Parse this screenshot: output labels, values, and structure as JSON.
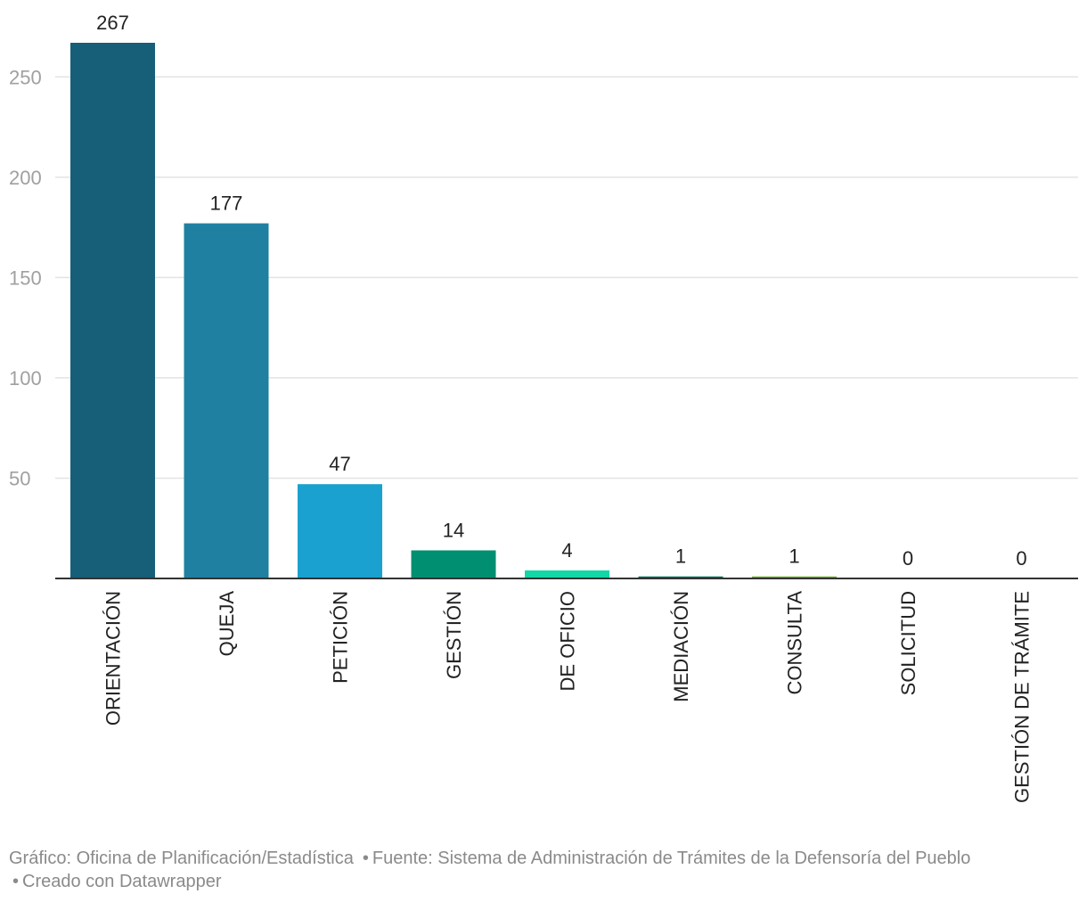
{
  "chart_data": {
    "type": "bar",
    "categories": [
      "ORIENTACIÓN",
      "QUEJA",
      "PETICIÓN",
      "GESTIÓN",
      "DE OFICIO",
      "MEDIACIÓN",
      "CONSULTA",
      "SOLICITUD",
      "GESTIÓN DE TRÁMITE"
    ],
    "values": [
      267,
      177,
      47,
      14,
      4,
      1,
      1,
      0,
      0
    ],
    "colors": [
      "#175f78",
      "#1f80a2",
      "#1aa1cf",
      "#018f72",
      "#12d7a7",
      "#046d51",
      "#6ea831",
      "#cccccc",
      "#cccccc"
    ],
    "ylim": [
      0,
      267
    ],
    "yticks": [
      50,
      100,
      150,
      200,
      250
    ],
    "grid": true,
    "title": "",
    "xlabel": "",
    "ylabel": ""
  },
  "footer": {
    "credit": "Gráfico: Oficina de Planificación/Estadística",
    "source": "Fuente: Sistema de Administración de Trámites de la Defensoría del Pueblo",
    "made_with": "Creado con Datawrapper",
    "separator": "•"
  }
}
